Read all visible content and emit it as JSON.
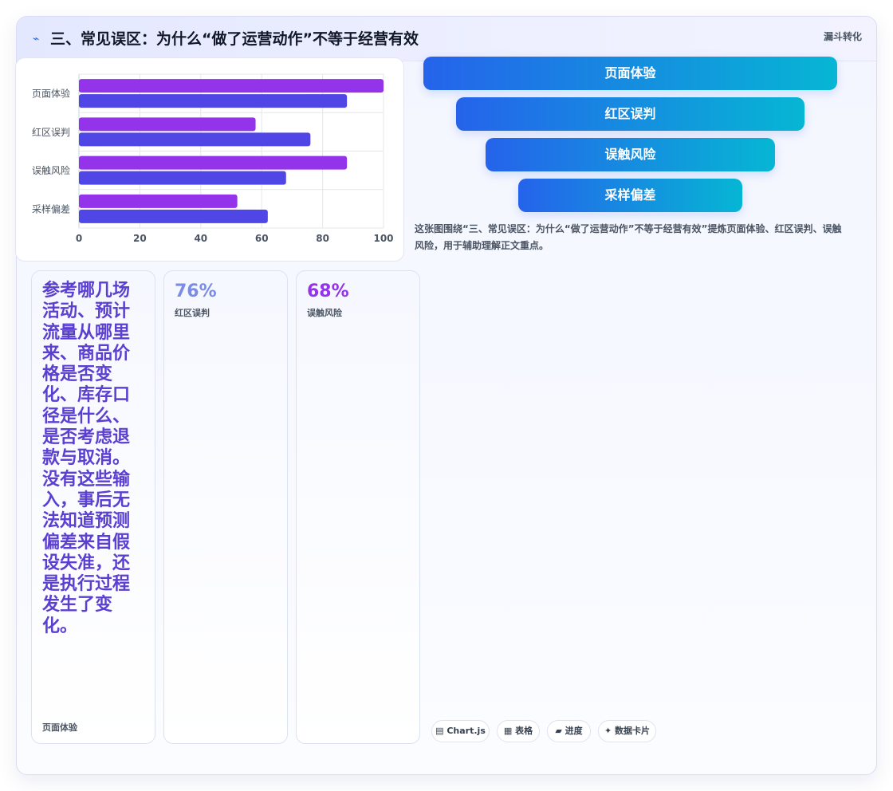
{
  "header": {
    "icon": "⌁",
    "title": "三、常见误区：为什么“做了运营动作”不等于经营有效",
    "tag": "漏斗转化"
  },
  "chart_data": {
    "type": "bar",
    "orientation": "horizontal",
    "categories": [
      "页面体验",
      "红区误判",
      "误触风险",
      "采样偏差"
    ],
    "series": [
      {
        "color": "#9333ea",
        "values": [
          100,
          58,
          88,
          52
        ]
      },
      {
        "color": "#4f46e5",
        "values": [
          88,
          76,
          68,
          62
        ]
      }
    ],
    "xlim": [
      0,
      100
    ],
    "xticks": [
      0,
      20,
      40,
      60,
      80,
      100
    ],
    "grid": true
  },
  "funnel": {
    "steps": [
      "页面体验",
      "红区误判",
      "误触风险",
      "采样偏差"
    ]
  },
  "description": "这张图围绕“三、常见误区：为什么“做了运营动作”不等于经营有效”提炼页面体验、红区误判、误触风险，用于辅助理解正文重点。",
  "stats": [
    {
      "text": "参考哪几场活动、预计流量从哪里来、商品价格是否变化、库存口径是什么、是否考虑退款与取消。没有这些输入，事后无法知道预测偏差来自假设失准，还是执行过程发生了变化。",
      "label": "页面体验"
    },
    {
      "value": "76%",
      "label": "红区误判",
      "color": "#7c8ce6"
    },
    {
      "value": "68%",
      "label": "误触风险",
      "color": "#9333ea"
    }
  ],
  "pills": [
    {
      "icon": "▤",
      "label": "Chart.js"
    },
    {
      "icon": "▦",
      "label": "表格"
    },
    {
      "icon": "▰",
      "label": "进度"
    },
    {
      "icon": "✦",
      "label": "数据卡片"
    }
  ]
}
